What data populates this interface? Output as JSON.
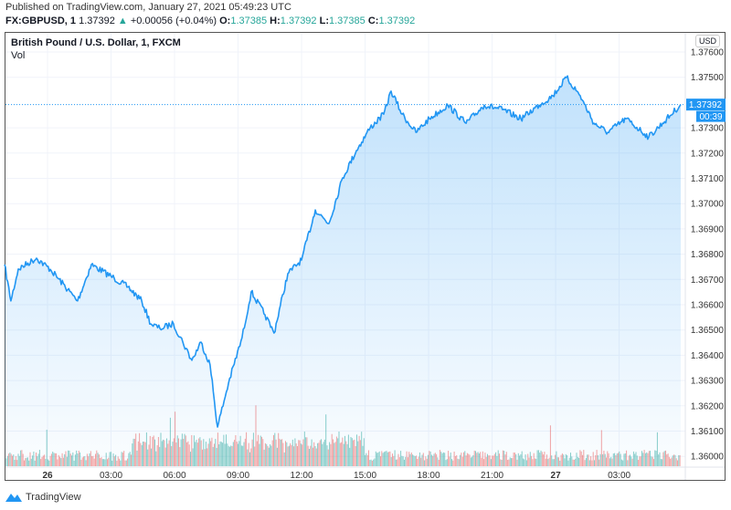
{
  "header": {
    "published": "Published on TradingView.com, January 27, 2021 05:49:23 UTC",
    "symbol": "FX:GBPUSD, 1",
    "last": "1.37392",
    "change": "+0.00056 (+0.04%)",
    "o_label": "O:",
    "o": "1.37385",
    "h_label": "H:",
    "h": "1.37392",
    "l_label": "L:",
    "l": "1.37385",
    "c_label": "C:",
    "c": "1.37392"
  },
  "legend": {
    "title": "British Pound / U.S. Dollar, 1, FXCM",
    "vol": "Vol"
  },
  "currency": "USD",
  "price_badge": {
    "price": "1.37392",
    "countdown": "00:39"
  },
  "footer": {
    "brand": "TradingView"
  },
  "colors": {
    "line": "#2196f3",
    "up": "#26a69a",
    "down": "#ef5350",
    "badge": "#2196f3"
  },
  "chart_data": {
    "type": "area",
    "title": "British Pound / U.S. Dollar, 1, FXCM",
    "x_unit": "hours since Jan 26 00:00 UTC",
    "ylim": [
      1.3597,
      1.3768
    ],
    "y_ticks": [
      "1.37600",
      "1.37500",
      "1.37300",
      "1.37200",
      "1.37100",
      "1.37000",
      "1.36900",
      "1.36800",
      "1.36700",
      "1.36600",
      "1.36500",
      "1.36400",
      "1.36300",
      "1.36200",
      "1.36100",
      "1.36000"
    ],
    "y_tick_values": [
      1.376,
      1.375,
      1.373,
      1.372,
      1.371,
      1.37,
      1.369,
      1.368,
      1.367,
      1.366,
      1.365,
      1.364,
      1.363,
      1.362,
      1.361,
      1.36
    ],
    "x_ticks": [
      {
        "label": "26",
        "h": 0,
        "bold": true
      },
      {
        "label": "03:00",
        "h": 3
      },
      {
        "label": "06:00",
        "h": 6
      },
      {
        "label": "09:00",
        "h": 9
      },
      {
        "label": "12:00",
        "h": 12
      },
      {
        "label": "15:00",
        "h": 15
      },
      {
        "label": "18:00",
        "h": 18
      },
      {
        "label": "21:00",
        "h": 21
      },
      {
        "label": "27",
        "h": 24,
        "bold": true
      },
      {
        "label": "03:00",
        "h": 27
      }
    ],
    "x": [
      -2.03,
      -1.73,
      -1.38,
      -0.52,
      0.13,
      1.42,
      2.07,
      3.15,
      3.8,
      4.45,
      4.88,
      5.31,
      5.95,
      6.39,
      6.82,
      7.25,
      7.68,
      8.03,
      8.55,
      9.19,
      9.62,
      10.27,
      10.7,
      11.35,
      12.0,
      12.65,
      13.29,
      13.94,
      14.59,
      15.24,
      15.88,
      16.23,
      16.75,
      17.4,
      18.04,
      18.91,
      19.77,
      20.63,
      21.49,
      22.36,
      23.22,
      23.87,
      24.51,
      25.16,
      25.81,
      26.46,
      27.32,
      28.4,
      29.05,
      29.91
    ],
    "price": [
      1.36759,
      1.36615,
      1.36741,
      1.36784,
      1.3674,
      1.36615,
      1.36759,
      1.36705,
      1.3667,
      1.36615,
      1.36524,
      1.36506,
      1.36524,
      1.36452,
      1.3638,
      1.36452,
      1.36362,
      1.36116,
      1.3629,
      1.3647,
      1.36651,
      1.3656,
      1.36488,
      1.36723,
      1.36777,
      1.36975,
      1.36921,
      1.37102,
      1.3721,
      1.373,
      1.37354,
      1.37445,
      1.37354,
      1.37282,
      1.37336,
      1.3739,
      1.37318,
      1.3739,
      1.37372,
      1.37336,
      1.3739,
      1.37427,
      1.37499,
      1.37427,
      1.37318,
      1.37282,
      1.37336,
      1.37264,
      1.37318,
      1.37392
    ],
    "last_price": 1.37392
  }
}
